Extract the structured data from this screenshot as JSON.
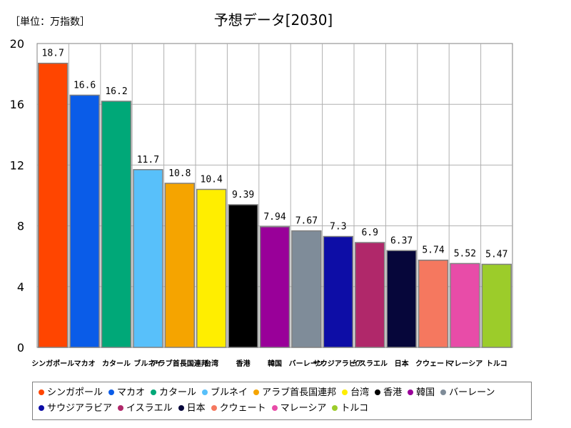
{
  "chart_data": {
    "type": "bar",
    "title": "予想データ[2030]",
    "unit_label": "［単位：万指数］",
    "ylim": [
      0,
      20
    ],
    "yticks": [
      0,
      4,
      8,
      12,
      16,
      20
    ],
    "grid": true,
    "legend_position": "bottom",
    "categories": [
      "シンガポール",
      "マカオ",
      "カタール",
      "ブルネイ",
      "アラブ首長国連邦",
      "台湾",
      "香港",
      "韓国",
      "バーレーン",
      "サウジアラビア",
      "イスラエル",
      "日本",
      "クウェート",
      "マレーシア",
      "トルコ"
    ],
    "values": [
      18.7,
      16.6,
      16.2,
      11.7,
      10.8,
      10.4,
      9.39,
      7.94,
      7.67,
      7.3,
      6.9,
      6.37,
      5.74,
      5.52,
      5.47
    ],
    "value_labels": [
      "18.7",
      "16.6",
      "16.2",
      "11.7",
      "10.8",
      "10.4",
      "9.39",
      "7.94",
      "7.67",
      "7.3",
      "6.9",
      "6.37",
      "5.74",
      "5.52",
      "5.47"
    ],
    "colors": [
      "#ff4500",
      "#0a5ce8",
      "#00a878",
      "#58c0fa",
      "#f5a400",
      "#ffee00",
      "#000000",
      "#990099",
      "#7f8c99",
      "#0d0da6",
      "#b0286a",
      "#06063a",
      "#f5785f",
      "#e84ca8",
      "#9ccc2a"
    ]
  }
}
